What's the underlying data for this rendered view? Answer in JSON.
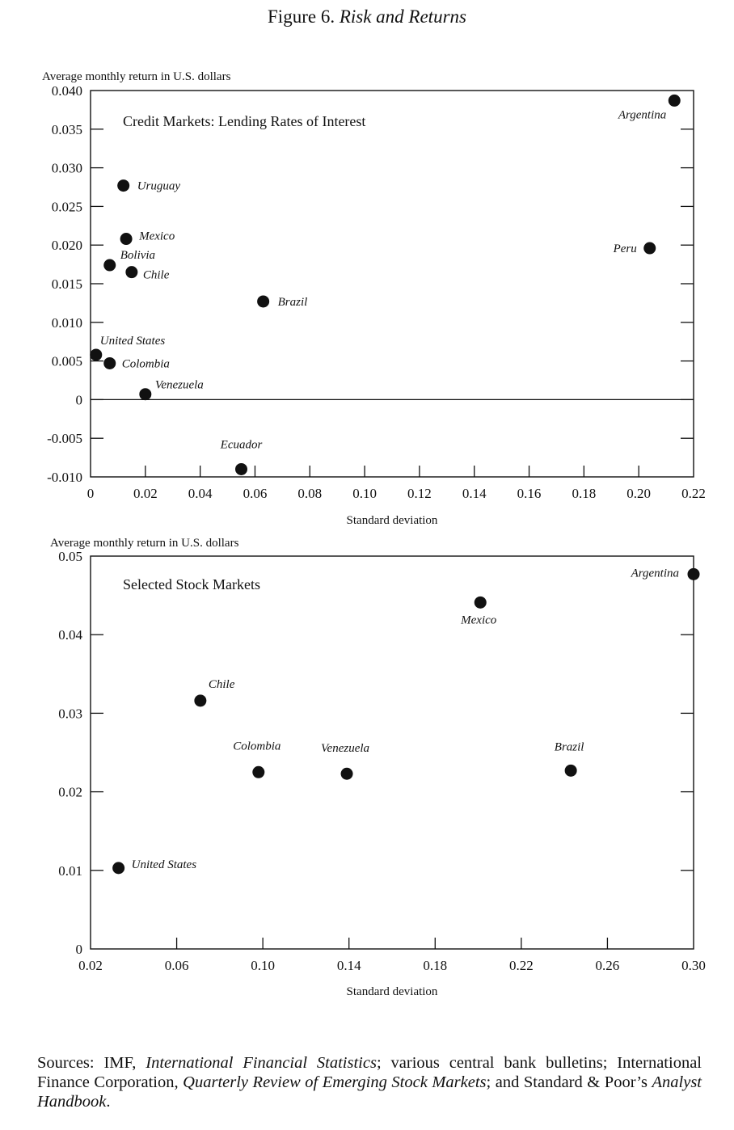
{
  "figure": {
    "title_prefix": "Figure 6.",
    "title_italic": "Risk and Returns"
  },
  "chart_data": [
    {
      "type": "scatter",
      "title": "Credit Markets: Lending Rates of Interest",
      "xlabel": "Standard deviation",
      "ylabel": "Average monthly return in U.S. dollars",
      "xlim": [
        0,
        0.22
      ],
      "ylim": [
        -0.01,
        0.04
      ],
      "x_ticks": [
        "0",
        "0.02",
        "0.04",
        "0.06",
        "0.08",
        "0.10",
        "0.12",
        "0.14",
        "0.16",
        "0.18",
        "0.20",
        "0.22"
      ],
      "y_ticks": [
        "0.040",
        "0.035",
        "0.030",
        "0.025",
        "0.020",
        "0.015",
        "0.010",
        "0.005",
        "0",
        "-0.005",
        "-0.010"
      ],
      "zero_line": true,
      "points": [
        {
          "label": "Argentina",
          "x": 0.213,
          "y": 0.0387
        },
        {
          "label": "Uruguay",
          "x": 0.012,
          "y": 0.0277
        },
        {
          "label": "Mexico",
          "x": 0.013,
          "y": 0.0208
        },
        {
          "label": "Peru",
          "x": 0.204,
          "y": 0.0196
        },
        {
          "label": "Bolivia",
          "x": 0.007,
          "y": 0.0174
        },
        {
          "label": "Chile",
          "x": 0.015,
          "y": 0.0165
        },
        {
          "label": "Brazil",
          "x": 0.063,
          "y": 0.0127
        },
        {
          "label": "United States",
          "x": 0.002,
          "y": 0.0058
        },
        {
          "label": "Colombia",
          "x": 0.007,
          "y": 0.0047
        },
        {
          "label": "Venezuela",
          "x": 0.02,
          "y": 0.0007
        },
        {
          "label": "Ecuador",
          "x": 0.055,
          "y": -0.009
        }
      ]
    },
    {
      "type": "scatter",
      "title": "Selected Stock Markets",
      "xlabel": "Standard deviation",
      "ylabel": "Average monthly return in U.S. dollars",
      "xlim": [
        0.02,
        0.3
      ],
      "ylim": [
        0,
        0.05
      ],
      "x_ticks": [
        "0.02",
        "0.06",
        "0.10",
        "0.14",
        "0.18",
        "0.22",
        "0.26",
        "0.30"
      ],
      "y_ticks": [
        "0.05",
        "0.04",
        "0.03",
        "0.02",
        "0.01",
        "0"
      ],
      "zero_line": false,
      "points": [
        {
          "label": "Argentina",
          "x": 0.3,
          "y": 0.0477
        },
        {
          "label": "Mexico",
          "x": 0.201,
          "y": 0.0441
        },
        {
          "label": "Chile",
          "x": 0.071,
          "y": 0.0316
        },
        {
          "label": "Colombia",
          "x": 0.098,
          "y": 0.0225
        },
        {
          "label": "Venezuela",
          "x": 0.139,
          "y": 0.0223
        },
        {
          "label": "Brazil",
          "x": 0.243,
          "y": 0.0227
        },
        {
          "label": "United States",
          "x": 0.033,
          "y": 0.0103
        }
      ]
    }
  ],
  "sources": {
    "prefix": "Sources: IMF, ",
    "ifs": "International Financial Statistics",
    "mid1": "; various central bank bulletins; International Finance Corporation, ",
    "qr": "Quarterly Review of Emerging Stock Markets",
    "mid2": "; and Standard & Poor’s ",
    "ah": "Analyst Handbook",
    "end": "."
  }
}
